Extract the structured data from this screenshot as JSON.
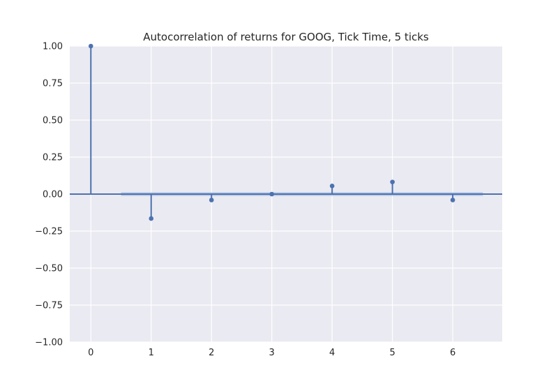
{
  "chart_data": {
    "type": "stem",
    "title": "Autocorrelation of returns for GOOG, Tick Time, 5 ticks",
    "xlabel": "",
    "ylabel": "",
    "lags": [
      0,
      1,
      2,
      3,
      4,
      5,
      6
    ],
    "values": [
      1.0,
      -0.165,
      -0.04,
      0.0,
      0.055,
      0.082,
      -0.04
    ],
    "confidence_band": [
      -0.012,
      0.012
    ],
    "xlim": [
      -0.35,
      6.82
    ],
    "ylim": [
      -1.0,
      1.0
    ],
    "xticks": [
      "0",
      "1",
      "2",
      "3",
      "4",
      "5",
      "6"
    ],
    "yticks": [
      1.0,
      0.75,
      0.5,
      0.25,
      0.0,
      -0.25,
      -0.5,
      -0.75,
      -1.0
    ],
    "ytick_labels": [
      "1.00",
      "0.75",
      "0.50",
      "0.25",
      "0.00",
      "−0.25",
      "−0.50",
      "−0.75",
      "−1.00"
    ],
    "grid": true,
    "colors": {
      "axes_bg": "#eaeaf2",
      "grid": "#ffffff",
      "line": "#4c72b0",
      "band": "#a9bddf"
    }
  }
}
